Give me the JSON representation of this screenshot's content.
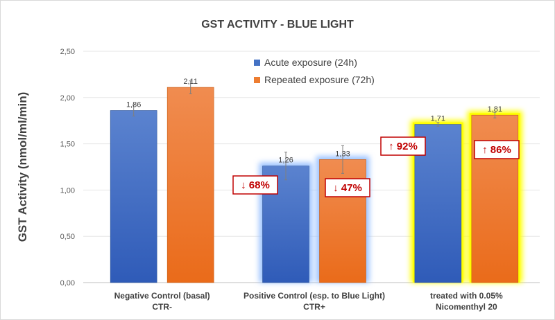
{
  "chart_data": {
    "type": "bar",
    "title": "GST ACTIVITY - BLUE LIGHT",
    "ylabel": "GST Activity (nmol/ml/min)",
    "xlabel": "",
    "ylim": [
      0,
      2.5
    ],
    "yticks": [
      "0,00",
      "0,50",
      "1,00",
      "1,50",
      "2,00",
      "2,50"
    ],
    "grid": true,
    "legend_position": "top-center",
    "categories": [
      [
        "Negative Control (basal)",
        "CTR-"
      ],
      [
        "Positive Control (esp. to Blue Light)",
        "CTR+"
      ],
      [
        "treated with 0.05%",
        "Nicomenthyl 20"
      ]
    ],
    "series": [
      {
        "name": "Acute exposure (24h)",
        "color": "#4472C4",
        "values": [
          1.86,
          1.26,
          1.71
        ],
        "labels": [
          "1,86",
          "1,26",
          "1,71"
        ],
        "errors": [
          0.06,
          0.15,
          0.02
        ]
      },
      {
        "name": "Repeated exposure (72h)",
        "color": "#ED7D31",
        "values": [
          2.11,
          1.33,
          1.81
        ],
        "labels": [
          "2,11",
          "1,33",
          "1,81"
        ],
        "errors": [
          0.07,
          0.15,
          0.03
        ]
      }
    ],
    "highlights": [
      "none",
      "blue-glow",
      "yellow-glow"
    ],
    "annotations": [
      {
        "category": 1,
        "series": 0,
        "text": "↓ 68%"
      },
      {
        "category": 1,
        "series": 1,
        "text": "↓ 47%"
      },
      {
        "category": 2,
        "series": 0,
        "text": "↑ 92%"
      },
      {
        "category": 2,
        "series": 1,
        "text": "↑ 86%"
      }
    ],
    "annotation_color": "#C00000"
  }
}
